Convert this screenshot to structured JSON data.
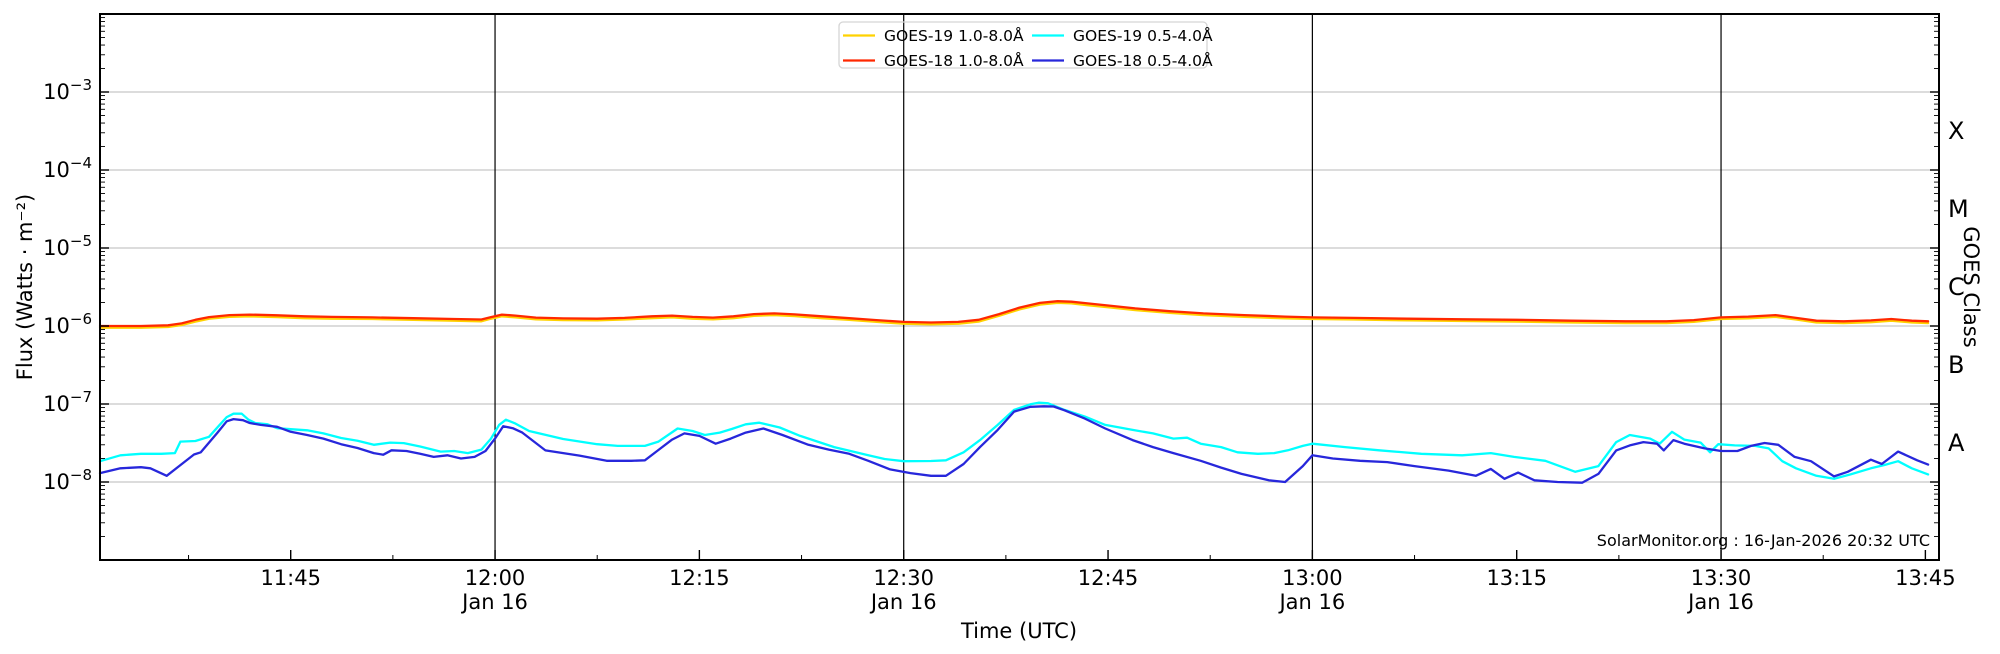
{
  "chart_data": {
    "type": "line",
    "xlabel": "Time (UTC)",
    "ylabel": "Flux (Watts · m⁻²)",
    "ylabel_right": "GOES Class",
    "watermark": "SolarMonitor.org : 16-Jan-2026 20:32 UTC",
    "x_axis": {
      "t0": 0,
      "t1": 135,
      "start_time": "11:31",
      "end_time": "13:46",
      "date": "Jan 16",
      "major_ticks": [
        {
          "t": 14,
          "label": "11:45"
        },
        {
          "t": 29,
          "label": "12:00",
          "sub": "Jan 16",
          "dateline": true
        },
        {
          "t": 44,
          "label": "12:15"
        },
        {
          "t": 59,
          "label": "12:30",
          "sub": "Jan 16",
          "dateline": true
        },
        {
          "t": 74,
          "label": "12:45"
        },
        {
          "t": 89,
          "label": "13:00",
          "sub": "Jan 16",
          "dateline": true
        },
        {
          "t": 104,
          "label": "13:15"
        },
        {
          "t": 119,
          "label": "13:30",
          "sub": "Jan 16",
          "dateline": true
        },
        {
          "t": 134,
          "label": "13:45"
        }
      ],
      "minor_ticks_t": [
        6.5,
        21.5,
        36.5,
        51.5,
        66.5,
        81.5,
        96.5,
        111.5,
        126.5
      ]
    },
    "y_axis": {
      "scale": "log",
      "log_top_exp": -2,
      "log_bottom_exp": -9,
      "labeled_exps": [
        -3,
        -4,
        -5,
        -6,
        -7,
        -8
      ],
      "grid": true
    },
    "goes_classes": [
      {
        "label": "X",
        "exp": -3.5
      },
      {
        "label": "M",
        "exp": -4.5
      },
      {
        "label": "C",
        "exp": -5.5
      },
      {
        "label": "B",
        "exp": -6.5
      },
      {
        "label": "A",
        "exp": -7.5
      }
    ],
    "colors": {
      "grid": "#c8c8c8",
      "dateline": "#000000",
      "spine": "#000000",
      "legend_border": "#d5d5d5",
      "goes19_long": "#ffd200",
      "goes18_long": "#ff2800",
      "goes19_short": "#00ffff",
      "goes18_short": "#2727db"
    },
    "legend": {
      "position": "top-center",
      "columns": 2
    },
    "series": [
      {
        "name": "GOES-19 1.0-8.0Å",
        "color": "#ffd200",
        "t": [
          0,
          3,
          5,
          6,
          7,
          8,
          9.5,
          11,
          13,
          15,
          17,
          20,
          23,
          26,
          28,
          28.7,
          29.5,
          30.5,
          32,
          34,
          36.5,
          38.5,
          40.5,
          42,
          43.5,
          45,
          46.5,
          48,
          49.5,
          51,
          53,
          55,
          57,
          59,
          61,
          63,
          64.5,
          66,
          67.5,
          69,
          70.3,
          71.3,
          72.5,
          74,
          76,
          78.5,
          81,
          84,
          87,
          89,
          92,
          96,
          100,
          104,
          108,
          112,
          115,
          117,
          119,
          121,
          123,
          124.5,
          126,
          128,
          130,
          131.5,
          133,
          134.2
        ],
        "v": [
          9.5e-07,
          9.5e-07,
          9.7e-07,
          1.03e-06,
          1.14e-06,
          1.24e-06,
          1.31e-06,
          1.33e-06,
          1.3e-06,
          1.26e-06,
          1.24e-06,
          1.23e-06,
          1.2e-06,
          1.17e-06,
          1.15e-06,
          1.24e-06,
          1.33e-06,
          1.29e-06,
          1.22e-06,
          1.19e-06,
          1.18e-06,
          1.21e-06,
          1.26e-06,
          1.29e-06,
          1.24e-06,
          1.22e-06,
          1.26e-06,
          1.35e-06,
          1.38e-06,
          1.34e-06,
          1.26e-06,
          1.2e-06,
          1.13e-06,
          1.07e-06,
          1.05e-06,
          1.07e-06,
          1.14e-06,
          1.35e-06,
          1.63e-06,
          1.88e-06,
          1.98e-06,
          1.95e-06,
          1.85e-06,
          1.74e-06,
          1.6e-06,
          1.47e-06,
          1.38e-06,
          1.31e-06,
          1.25e-06,
          1.23e-06,
          1.21e-06,
          1.18e-06,
          1.16e-06,
          1.14e-06,
          1.11e-06,
          1.09e-06,
          1.09e-06,
          1.13e-06,
          1.23e-06,
          1.25e-06,
          1.31e-06,
          1.21e-06,
          1.11e-06,
          1.09e-06,
          1.12e-06,
          1.17e-06,
          1.11e-06,
          1.09e-06
        ]
      },
      {
        "name": "GOES-18 1.0-8.0Å",
        "color": "#ff2800",
        "t": [
          0,
          3,
          5,
          6,
          7,
          8,
          9.5,
          11,
          13,
          15,
          17,
          20,
          23,
          26,
          28,
          28.7,
          29.5,
          30.5,
          32,
          34,
          36.5,
          38.5,
          40.5,
          42,
          43.5,
          45,
          46.5,
          48,
          49.5,
          51,
          53,
          55,
          57,
          59,
          61,
          63,
          64.5,
          66,
          67.5,
          69,
          70.3,
          71.3,
          72.5,
          74,
          76,
          78.5,
          81,
          84,
          87,
          89,
          92,
          96,
          100,
          104,
          108,
          112,
          115,
          117,
          119,
          121,
          123,
          124.5,
          126,
          128,
          130,
          131.5,
          133,
          134.2
        ],
        "v": [
          1e-06,
          1e-06,
          1.02e-06,
          1.08e-06,
          1.2e-06,
          1.3e-06,
          1.38e-06,
          1.4e-06,
          1.37e-06,
          1.33e-06,
          1.31e-06,
          1.29e-06,
          1.26e-06,
          1.23e-06,
          1.21e-06,
          1.3e-06,
          1.4e-06,
          1.36e-06,
          1.28e-06,
          1.25e-06,
          1.24e-06,
          1.27e-06,
          1.33e-06,
          1.36e-06,
          1.31e-06,
          1.28e-06,
          1.33e-06,
          1.42e-06,
          1.45e-06,
          1.41e-06,
          1.33e-06,
          1.26e-06,
          1.19e-06,
          1.13e-06,
          1.11e-06,
          1.13e-06,
          1.2e-06,
          1.42e-06,
          1.72e-06,
          1.98e-06,
          2.08e-06,
          2.05e-06,
          1.95e-06,
          1.83e-06,
          1.68e-06,
          1.55e-06,
          1.45e-06,
          1.38e-06,
          1.32e-06,
          1.29e-06,
          1.27e-06,
          1.24e-06,
          1.22e-06,
          1.2e-06,
          1.17e-06,
          1.15e-06,
          1.15e-06,
          1.19e-06,
          1.29e-06,
          1.32e-06,
          1.38e-06,
          1.27e-06,
          1.17e-06,
          1.15e-06,
          1.18e-06,
          1.23e-06,
          1.17e-06,
          1.15e-06
        ]
      },
      {
        "name": "GOES-19 0.5-4.0Å",
        "color": "#00ffff",
        "t": [
          0,
          1.5,
          3,
          4.5,
          5.5,
          5.9,
          7,
          8,
          8.7,
          9.3,
          9.8,
          10.4,
          10.9,
          11.4,
          12.3,
          13,
          14,
          15.2,
          16.4,
          17.7,
          18.9,
          20.1,
          21.3,
          22.3,
          23.5,
          25,
          26,
          27,
          28,
          28.7,
          29.3,
          29.8,
          30.5,
          31.5,
          34,
          36.5,
          38,
          40,
          41,
          42.4,
          43.5,
          44.4,
          45.5,
          46.4,
          47.4,
          48.4,
          49.9,
          51.4,
          53.9,
          56.4,
          57.6,
          59,
          61,
          62.1,
          63.4,
          64.6,
          65.9,
          67.1,
          68.3,
          68.9,
          69.6,
          70.8,
          72.3,
          73.8,
          75.8,
          77.3,
          78.8,
          79.8,
          80.8,
          82.3,
          83.5,
          85,
          86.2,
          87.2,
          88.3,
          89,
          91.4,
          93.9,
          97,
          100,
          102.1,
          103.8,
          106.1,
          108.3,
          110,
          111.3,
          112.3,
          113.8,
          114.5,
          115.4,
          116.3,
          117.5,
          118.2,
          118.8,
          120,
          121.5,
          122.5,
          123.5,
          124.5,
          126,
          127.3,
          128.5,
          130,
          131,
          132,
          133,
          134.2
        ],
        "v": [
          1.85e-08,
          2.2e-08,
          2.3e-08,
          2.3e-08,
          2.35e-08,
          3.3e-08,
          3.35e-08,
          3.8e-08,
          5.2e-08,
          6.8e-08,
          7.5e-08,
          7.5e-08,
          6.3e-08,
          5.7e-08,
          5.5e-08,
          4.9e-08,
          4.75e-08,
          4.6e-08,
          4.2e-08,
          3.67e-08,
          3.37e-08,
          3e-08,
          3.2e-08,
          3.15e-08,
          2.85e-08,
          2.45e-08,
          2.5e-08,
          2.35e-08,
          2.6e-08,
          3.6e-08,
          5.4e-08,
          6.3e-08,
          5.6e-08,
          4.5e-08,
          3.56e-08,
          3.05e-08,
          2.9e-08,
          2.9e-08,
          3.3e-08,
          4.85e-08,
          4.5e-08,
          4e-08,
          4.3e-08,
          4.8e-08,
          5.5e-08,
          5.76e-08,
          5e-08,
          3.9e-08,
          2.8e-08,
          2.2e-08,
          1.97e-08,
          1.85e-08,
          1.86e-08,
          1.9e-08,
          2.4e-08,
          3.45e-08,
          5.4e-08,
          8.4e-08,
          9.9e-08,
          1.04e-07,
          1.02e-07,
          8.4e-08,
          6.9e-08,
          5.4e-08,
          4.65e-08,
          4.2e-08,
          3.6e-08,
          3.7e-08,
          3.1e-08,
          2.8e-08,
          2.4e-08,
          2.3e-08,
          2.35e-08,
          2.55e-08,
          2.9e-08,
          3.1e-08,
          2.8e-08,
          2.55e-08,
          2.3e-08,
          2.2e-08,
          2.35e-08,
          2.1e-08,
          1.87e-08,
          1.35e-08,
          1.6e-08,
          3.25e-08,
          4e-08,
          3.6e-08,
          3.1e-08,
          4.4e-08,
          3.5e-08,
          3.2e-08,
          2.4e-08,
          3.05e-08,
          2.95e-08,
          2.9e-08,
          2.7e-08,
          1.85e-08,
          1.5e-08,
          1.2e-08,
          1.1e-08,
          1.25e-08,
          1.5e-08,
          1.65e-08,
          1.85e-08,
          1.5e-08,
          1.25e-08
        ]
      },
      {
        "name": "GOES-18 0.5-4.0Å",
        "color": "#2727db",
        "t": [
          0,
          1.5,
          3,
          3.7,
          4.9,
          6.1,
          6.9,
          7.4,
          8.6,
          9.3,
          9.8,
          10.5,
          11,
          11.8,
          13,
          14,
          15.2,
          16.4,
          17.7,
          18.9,
          20.1,
          20.8,
          21.4,
          22.5,
          23.5,
          24.5,
          25.5,
          26.5,
          27.5,
          28.3,
          29,
          29.6,
          30.3,
          31,
          32.7,
          35.2,
          37.2,
          39,
          40,
          40.9,
          42,
          42.9,
          44,
          45.2,
          46.3,
          47.4,
          48.7,
          50.1,
          52,
          53.5,
          55,
          56.4,
          58,
          59.5,
          61,
          62.1,
          63.4,
          64.6,
          65.9,
          67.1,
          68.3,
          69.3,
          70,
          70.8,
          72.3,
          73.8,
          75.8,
          77.3,
          78.8,
          80.8,
          82.3,
          83.8,
          85.8,
          87,
          88.3,
          89,
          90.5,
          92.5,
          94.5,
          96.5,
          99,
          101,
          102.1,
          103.1,
          104.1,
          105.3,
          107,
          108.8,
          110,
          111.3,
          112.3,
          113.3,
          114.3,
          114.8,
          115.5,
          116.3,
          117.8,
          119,
          120.2,
          121.2,
          122.2,
          123.2,
          124.4,
          125.6,
          127.3,
          128.3,
          130,
          130.8,
          132,
          133.4,
          134.2
        ],
        "v": [
          1.3e-08,
          1.5e-08,
          1.55e-08,
          1.5e-08,
          1.2e-08,
          1.75e-08,
          2.25e-08,
          2.4e-08,
          4.25e-08,
          6e-08,
          6.4e-08,
          6.2e-08,
          5.7e-08,
          5.4e-08,
          5.1e-08,
          4.4e-08,
          4e-08,
          3.6e-08,
          3.05e-08,
          2.73e-08,
          2.35e-08,
          2.24e-08,
          2.55e-08,
          2.5e-08,
          2.3e-08,
          2.1e-08,
          2.2e-08,
          2e-08,
          2.1e-08,
          2.5e-08,
          3.6e-08,
          5.2e-08,
          4.9e-08,
          4.3e-08,
          2.54e-08,
          2.18e-08,
          1.87e-08,
          1.87e-08,
          1.9e-08,
          2.5e-08,
          3.5e-08,
          4.2e-08,
          3.9e-08,
          3.1e-08,
          3.6e-08,
          4.3e-08,
          4.85e-08,
          4e-08,
          3e-08,
          2.6e-08,
          2.3e-08,
          1.87e-08,
          1.45e-08,
          1.3e-08,
          1.2e-08,
          1.2e-08,
          1.7e-08,
          2.8e-08,
          4.65e-08,
          8e-08,
          9.2e-08,
          9.35e-08,
          9.3e-08,
          8.3e-08,
          6.5e-08,
          4.85e-08,
          3.45e-08,
          2.8e-08,
          2.35e-08,
          1.87e-08,
          1.53e-08,
          1.27e-08,
          1.05e-08,
          1e-08,
          1.6e-08,
          2.2e-08,
          2e-08,
          1.87e-08,
          1.8e-08,
          1.6e-08,
          1.4e-08,
          1.2e-08,
          1.47e-08,
          1.1e-08,
          1.32e-08,
          1.05e-08,
          1e-08,
          9.8e-09,
          1.27e-08,
          2.54e-08,
          2.95e-08,
          3.25e-08,
          3.1e-08,
          2.54e-08,
          3.45e-08,
          3.1e-08,
          2.7e-08,
          2.5e-08,
          2.5e-08,
          2.9e-08,
          3.16e-08,
          3e-08,
          2.1e-08,
          1.85e-08,
          1.18e-08,
          1.35e-08,
          1.93e-08,
          1.7e-08,
          2.45e-08,
          1.9e-08,
          1.67e-08
        ]
      }
    ]
  }
}
